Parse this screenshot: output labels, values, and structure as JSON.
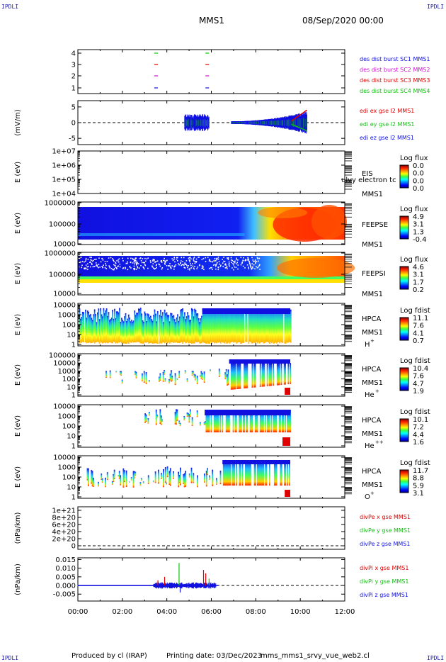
{
  "corner_label": "IPDLI",
  "header": {
    "spacecraft": "MMS1",
    "date": "08/Sep/2020 00:00"
  },
  "footer": {
    "produced": "Produced by cl (IRAP)",
    "printing": "Printing date: 03/Dec/2023",
    "script": "mms_mms1_srvy_vue_web2.cl"
  },
  "colors": {
    "red": "#e00000",
    "green": "#10c010",
    "blue": "#1010e0",
    "magenta": "#d010d0"
  },
  "chart_data": {
    "type": "multi-panel time series",
    "x": {
      "range": [
        "00:00",
        "12:00"
      ],
      "ticks": [
        "00:00",
        "02:00",
        "04:00",
        "06:00",
        "08:00",
        "10:00",
        "12:00"
      ]
    },
    "panels": [
      {
        "id": "burst",
        "yticks": [
          "1",
          "2",
          "3",
          "4"
        ],
        "legend": [
          {
            "label": "des dist burst SC1 MMS1",
            "color": "#1010e0"
          },
          {
            "label": "des dist burst SC2 MMS2",
            "color": "#d010d0"
          },
          {
            "label": "des dist burst SC3 MMS3",
            "color": "#e00000"
          },
          {
            "label": "des dist burst SC4 MMS4",
            "color": "#10c010"
          }
        ],
        "intervals": [
          {
            "sc": 1,
            "times": [
              3.5,
              5.8
            ]
          },
          {
            "sc": 2,
            "times": [
              3.5,
              5.8
            ]
          },
          {
            "sc": 3,
            "times": [
              3.5,
              5.8
            ]
          },
          {
            "sc": 4,
            "times": [
              3.5,
              5.8
            ]
          }
        ]
      },
      {
        "id": "edi",
        "ylabel": "(mV/m)",
        "yticks": [
          "-5",
          "0",
          "5"
        ],
        "ylim": [
          -7,
          7
        ],
        "legend": [
          {
            "label": "edi ex gse l2 MMS1",
            "color": "#e00000"
          },
          {
            "label": "edi ey gse l2 MMS1",
            "color": "#10c010"
          },
          {
            "label": "edi ez gse l2 MMS1",
            "color": "#1010e0"
          }
        ],
        "data_intervals": [
          [
            4.8,
            5.9
          ],
          [
            6.9,
            10.3
          ]
        ]
      },
      {
        "id": "eis",
        "ylabel": "E (eV)",
        "yticks": [
          "1e+04",
          "1e+05",
          "1e+06",
          "1e+07"
        ],
        "name": "EIS",
        "name2": "MMS1",
        "overlay": "ulvy electron tc",
        "cbar_title": "Log flux",
        "cbar_ticks": [
          "0.0",
          "0.0",
          "0.0",
          "0.0"
        ]
      },
      {
        "id": "feepse",
        "ylabel": "E (eV)",
        "yticks": [
          "10000",
          "100000",
          "1000000"
        ],
        "name": "FEEPSE",
        "name2": "MMS1",
        "cbar_title": "Log flux",
        "cbar_ticks": [
          "4.9",
          "3.1",
          "1.3",
          "-0.4"
        ]
      },
      {
        "id": "feepsi",
        "ylabel": "E (eV)",
        "yticks": [
          "10000",
          "100000",
          "1000000"
        ],
        "name": "FEEPSI",
        "name2": "MMS1",
        "cbar_title": "Log flux",
        "cbar_ticks": [
          "4.6",
          "3.1",
          "1.7",
          "0.2"
        ]
      },
      {
        "id": "hpca_h",
        "ylabel": "E (eV)",
        "yticks": [
          "1",
          "10",
          "100",
          "1000",
          "10000"
        ],
        "name": "HPCA",
        "name2": "MMS1",
        "species": "H",
        "charge": "+",
        "cbar_title": "Log fdist",
        "cbar_ticks": [
          "11.1",
          "7.6",
          "4.1",
          "0.7"
        ]
      },
      {
        "id": "hpca_he1",
        "ylabel": "E (eV)",
        "yticks": [
          "1",
          "10",
          "100",
          "1000",
          "10000",
          "100000"
        ],
        "name": "HPCA",
        "name2": "MMS1",
        "species": "He",
        "charge": "+",
        "cbar_title": "Log fdist",
        "cbar_ticks": [
          "10.4",
          "7.6",
          "4.7",
          "1.9"
        ]
      },
      {
        "id": "hpca_he2",
        "ylabel": "E (eV)",
        "yticks": [
          "1",
          "10",
          "100",
          "1000",
          "10000"
        ],
        "name": "HPCA",
        "name2": "MMS1",
        "species": "He",
        "charge": "++",
        "cbar_title": "Log fdist",
        "cbar_ticks": [
          "10.1",
          "7.2",
          "4.4",
          "1.6"
        ]
      },
      {
        "id": "hpca_o",
        "ylabel": "E (eV)",
        "yticks": [
          "1",
          "10",
          "100",
          "1000",
          "10000"
        ],
        "name": "HPCA",
        "name2": "MMS1",
        "species": "O",
        "charge": "+",
        "cbar_title": "Log fdist",
        "cbar_ticks": [
          "11.7",
          "8.8",
          "5.9",
          "3.1"
        ]
      },
      {
        "id": "divpe",
        "ylabel": "(nPa/km)",
        "yticks": [
          "0",
          "2e+20",
          "4e+20",
          "6e+20",
          "8e+20",
          "1e+21"
        ],
        "legend": [
          {
            "label": "divPe x gse MMS1",
            "color": "#e00000"
          },
          {
            "label": "divPe y gse MMS1",
            "color": "#10c010"
          },
          {
            "label": "divPe z gse MMS1",
            "color": "#1010e0"
          }
        ]
      },
      {
        "id": "divpi",
        "ylabel": "(nPa/km)",
        "yticks": [
          "-0.005",
          "0.000",
          "0.005",
          "0.010",
          "0.015"
        ],
        "ylim": [
          -0.009,
          0.016
        ],
        "legend": [
          {
            "label": "divPi x gse MMS1",
            "color": "#e00000"
          },
          {
            "label": "divPi y gse MMS1",
            "color": "#10c010"
          },
          {
            "label": "divPi z gse MMS1",
            "color": "#1010e0"
          }
        ],
        "spikes": [
          {
            "t": 3.6,
            "v": 0.003,
            "color": "#e00000"
          },
          {
            "t": 3.9,
            "v": 0.005,
            "color": "#e00000"
          },
          {
            "t": 4.55,
            "v": 0.013,
            "color": "#10c010"
          },
          {
            "t": 4.6,
            "v": -0.004,
            "color": "#1010e0"
          },
          {
            "t": 5.65,
            "v": 0.009,
            "color": "#e00000"
          },
          {
            "t": 5.75,
            "v": 0.007,
            "color": "#e00000"
          },
          {
            "t": 5.9,
            "v": 0.004,
            "color": "#10c010"
          }
        ],
        "data_interval": [
          0,
          6.3
        ]
      }
    ]
  }
}
